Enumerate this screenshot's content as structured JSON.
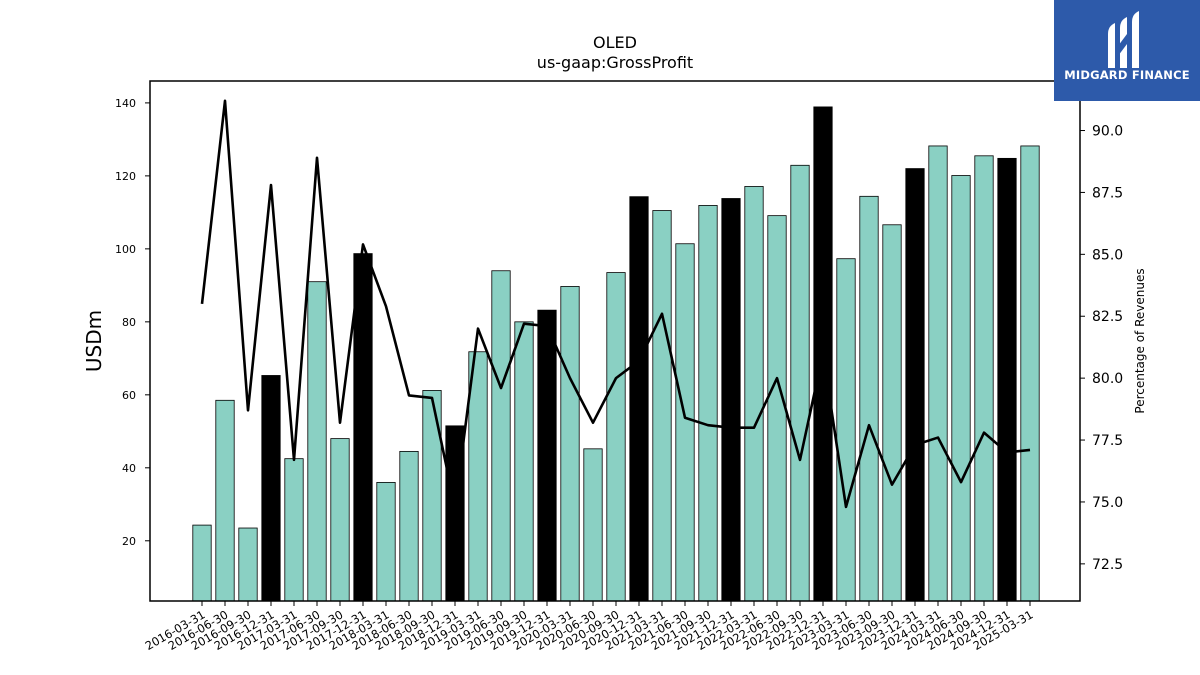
{
  "chart_data": {
    "type": "bar",
    "title": "OLED",
    "subtitle": "us-gaap:GrossProfit",
    "ylabel": "USDm",
    "y2label": "Percentage of Revenues",
    "ylim": [
      3.5,
      146
    ],
    "y2lim": [
      71.0,
      92.0
    ],
    "yticks": [
      20,
      40,
      60,
      80,
      100,
      120,
      140
    ],
    "y2ticks": [
      72.5,
      75.0,
      77.5,
      80.0,
      82.5,
      85.0,
      87.5,
      90.0
    ],
    "categories": [
      "2016-03-31",
      "2016-06-30",
      "2016-09-30",
      "2016-12-31",
      "2017-03-31",
      "2017-06-30",
      "2017-09-30",
      "2017-12-31",
      "2018-03-31",
      "2018-06-30",
      "2018-09-30",
      "2018-12-31",
      "2019-03-31",
      "2019-06-30",
      "2019-09-30",
      "2019-12-31",
      "2020-03-31",
      "2020-06-30",
      "2020-09-30",
      "2020-12-31",
      "2021-03-31",
      "2021-06-30",
      "2021-09-30",
      "2021-12-31",
      "2022-03-31",
      "2022-06-30",
      "2022-09-30",
      "2022-12-31",
      "2023-03-31",
      "2023-06-30",
      "2023-09-30",
      "2023-12-31",
      "2024-03-31",
      "2024-06-30",
      "2024-09-30",
      "2024-12-31",
      "2025-03-31"
    ],
    "series": [
      {
        "kind": "bar",
        "values": [
          24.3,
          58.5,
          23.5,
          65.3,
          42.5,
          91.0,
          48.0,
          98.7,
          36.0,
          44.5,
          61.2,
          51.5,
          71.8,
          94.0,
          80.0,
          83.2,
          89.7,
          45.2,
          93.5,
          114.3,
          110.5,
          101.4,
          111.9,
          113.8,
          117.1,
          109.1,
          122.9,
          138.9,
          97.3,
          114.4,
          106.6,
          122.0,
          128.2,
          120.1,
          125.5,
          124.8,
          128.2
        ],
        "highlight": [
          false,
          false,
          false,
          true,
          false,
          false,
          false,
          true,
          false,
          false,
          false,
          true,
          false,
          false,
          false,
          true,
          false,
          false,
          false,
          true,
          false,
          false,
          false,
          true,
          false,
          false,
          false,
          true,
          false,
          false,
          false,
          true,
          false,
          false,
          false,
          true,
          false
        ],
        "color": "#8ad0c3",
        "highlight_color": "#000000"
      },
      {
        "kind": "line",
        "axis": "right",
        "values": [
          83.0,
          91.2,
          78.7,
          87.8,
          76.7,
          88.9,
          78.2,
          85.4,
          82.9,
          79.3,
          79.2,
          74.8,
          82.0,
          79.6,
          82.2,
          82.1,
          80.0,
          78.2,
          80.0,
          80.7,
          82.6,
          78.4,
          78.1,
          78.0,
          78.0,
          80.0,
          76.7,
          81.0,
          74.8,
          78.1,
          75.7,
          77.3,
          77.6,
          75.8,
          77.8,
          77.0,
          77.1
        ],
        "color": "#000000"
      }
    ]
  },
  "logo": {
    "text": "MIDGARD FINANCE",
    "color": "#2d5aaa"
  }
}
